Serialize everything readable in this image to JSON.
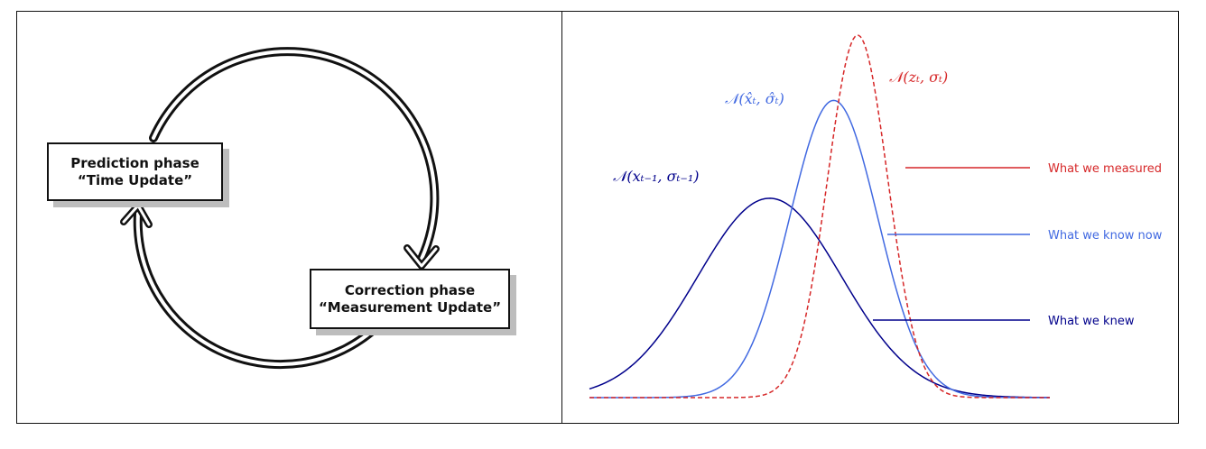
{
  "left_diagram": {
    "prediction_phase": {
      "title": "Prediction phase",
      "subtitle": "“Time Update”"
    },
    "correction_phase": {
      "title": "Correction phase",
      "subtitle": "“Measurement Update”"
    },
    "arrow_color": "#111111"
  },
  "chart_data": {
    "type": "line",
    "title": "",
    "xlabel": "",
    "ylabel": "",
    "xlim": [
      -4.5,
      7
    ],
    "ylim": [
      0,
      1.0
    ],
    "grid": false,
    "legend_placement": "right",
    "series": [
      {
        "key": "prior",
        "name": "What we knew",
        "curve_label": "𝒩(xₜ₋₁, σₜ₋₁)",
        "mean": 0,
        "sd": 1.8,
        "peak": 0.55,
        "color": "#00008b",
        "dash": "solid"
      },
      {
        "key": "posterior",
        "name": "What we know now",
        "curve_label": "𝒩(x̂ₜ, σ̂ₜ)",
        "mean": 1.6,
        "sd": 1.1,
        "peak": 0.82,
        "color": "#4169e1",
        "dash": "solid"
      },
      {
        "key": "measurement",
        "name": "What we measured",
        "curve_label": "𝒩(zₜ, σₜ)",
        "mean": 2.2,
        "sd": 0.75,
        "peak": 1.0,
        "color": "#d62728",
        "dash": "dashed"
      }
    ]
  }
}
